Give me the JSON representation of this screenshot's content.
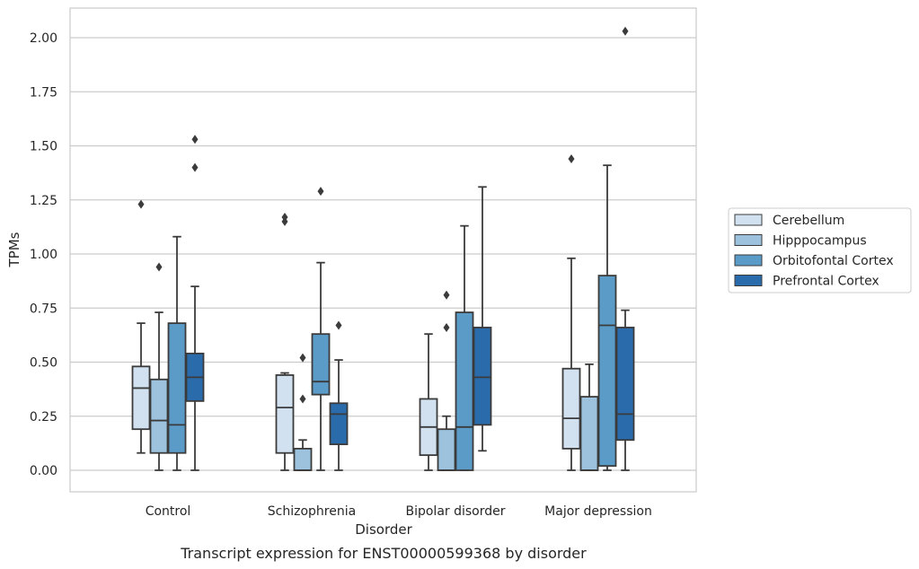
{
  "chart_data": {
    "type": "boxplot",
    "xlabel": "Disorder",
    "ylabel": "TPMs",
    "caption": "Transcript expression for ENST00000599368 by disorder",
    "ylim": [
      -0.1,
      2.13
    ],
    "yticks": [
      "0.00",
      "0.25",
      "0.50",
      "0.75",
      "1.00",
      "1.25",
      "1.50",
      "1.75",
      "2.00"
    ],
    "grid": "horizontal",
    "legend_position": "right",
    "categories": [
      "Control",
      "Schizophrenia",
      "Bipolar disorder",
      "Major depression"
    ],
    "series": [
      {
        "name": "Cerebellum",
        "color": "#d1e1f0",
        "boxes": [
          {
            "whislo": 0.08,
            "q1": 0.19,
            "med": 0.38,
            "q3": 0.48,
            "whishi": 0.68,
            "fliers": [
              1.23
            ]
          },
          {
            "whislo": 0.0,
            "q1": 0.08,
            "med": 0.29,
            "q3": 0.44,
            "whishi": 0.45,
            "fliers": [
              1.15,
              1.17
            ]
          },
          {
            "whislo": 0.0,
            "q1": 0.07,
            "med": 0.2,
            "q3": 0.33,
            "whishi": 0.63,
            "fliers": []
          },
          {
            "whislo": 0.0,
            "q1": 0.1,
            "med": 0.24,
            "q3": 0.47,
            "whishi": 0.98,
            "fliers": [
              1.44
            ]
          }
        ]
      },
      {
        "name": "Hipppocampus",
        "color": "#9cc2de",
        "boxes": [
          {
            "whislo": 0.0,
            "q1": 0.08,
            "med": 0.23,
            "q3": 0.42,
            "whishi": 0.73,
            "fliers": [
              0.94
            ]
          },
          {
            "whislo": 0.0,
            "q1": 0.0,
            "med": 0.0,
            "q3": 0.1,
            "whishi": 0.14,
            "fliers": [
              0.33,
              0.52
            ]
          },
          {
            "whislo": 0.0,
            "q1": 0.0,
            "med": 0.0,
            "q3": 0.19,
            "whishi": 0.25,
            "fliers": [
              0.66,
              0.81
            ]
          },
          {
            "whislo": 0.0,
            "q1": 0.0,
            "med": 0.0,
            "q3": 0.34,
            "whishi": 0.49,
            "fliers": []
          }
        ]
      },
      {
        "name": "Orbitofontal Cortex",
        "color": "#5a9bc8",
        "boxes": [
          {
            "whislo": 0.0,
            "q1": 0.08,
            "med": 0.21,
            "q3": 0.68,
            "whishi": 1.08,
            "fliers": []
          },
          {
            "whislo": 0.0,
            "q1": 0.35,
            "med": 0.41,
            "q3": 0.63,
            "whishi": 0.96,
            "fliers": [
              1.29
            ]
          },
          {
            "whislo": 0.0,
            "q1": 0.0,
            "med": 0.2,
            "q3": 0.73,
            "whishi": 1.13,
            "fliers": []
          },
          {
            "whislo": 0.0,
            "q1": 0.02,
            "med": 0.67,
            "q3": 0.9,
            "whishi": 1.41,
            "fliers": []
          }
        ]
      },
      {
        "name": "Prefrontal Cortex",
        "color": "#2a6bab",
        "boxes": [
          {
            "whislo": 0.0,
            "q1": 0.32,
            "med": 0.43,
            "q3": 0.54,
            "whishi": 0.85,
            "fliers": [
              1.4,
              1.53
            ]
          },
          {
            "whislo": 0.0,
            "q1": 0.12,
            "med": 0.26,
            "q3": 0.31,
            "whishi": 0.51,
            "fliers": [
              0.67
            ]
          },
          {
            "whislo": 0.09,
            "q1": 0.21,
            "med": 0.43,
            "q3": 0.66,
            "whishi": 1.31,
            "fliers": []
          },
          {
            "whislo": 0.0,
            "q1": 0.14,
            "med": 0.26,
            "q3": 0.66,
            "whishi": 0.74,
            "fliers": [
              2.03
            ]
          }
        ]
      }
    ]
  }
}
